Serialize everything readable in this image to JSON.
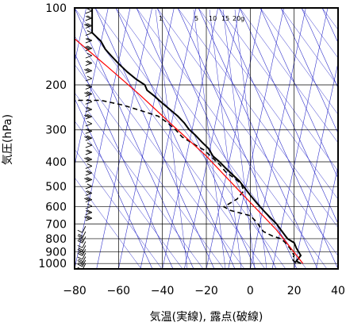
{
  "chart_data": {
    "type": "line",
    "xlabel": "気温(実線), 露点(破線)",
    "ylabel": "気圧(hPa)",
    "xlim": [
      -80,
      40
    ],
    "ylim": [
      1050,
      100
    ],
    "y_scale": "log",
    "x_ticks": [
      -80,
      -60,
      -40,
      -20,
      0,
      20,
      40
    ],
    "x_tick_labels": [
      "−80",
      "−60",
      "−40",
      "−20",
      "0",
      "20",
      "40"
    ],
    "y_ticks": [
      100,
      200,
      300,
      400,
      500,
      600,
      700,
      800,
      900,
      1000
    ],
    "y_tick_labels": [
      "100",
      "200",
      "300",
      "400",
      "500",
      "600",
      "700",
      "800",
      "900",
      "1000"
    ],
    "mixing_ratio_labels": [
      {
        "text": "1",
        "value": 1
      },
      {
        "text": "5",
        "value": 5
      },
      {
        "text": "10",
        "value": 10
      },
      {
        "text": "15",
        "value": 15
      },
      {
        "text": "20g",
        "value": 20
      }
    ],
    "colors": {
      "temperature": "#000000",
      "dewpoint": "#000000",
      "moist_adiabat": "#ff0000",
      "guide_lines": "#3333cc",
      "grid": "#000000",
      "wind_barbs": "#000000"
    },
    "series": [
      {
        "type": "temperature_profile",
        "style": "solid",
        "points": [
          [
            -72,
            100
          ],
          [
            -72,
            125
          ],
          [
            -68,
            135
          ],
          [
            -66,
            145
          ],
          [
            -63,
            155
          ],
          [
            -60,
            165
          ],
          [
            -56,
            178
          ],
          [
            -52,
            190
          ],
          [
            -48,
            200
          ],
          [
            -47,
            210
          ],
          [
            -44,
            220
          ],
          [
            -41,
            232
          ],
          [
            -37,
            248
          ],
          [
            -33,
            265
          ],
          [
            -30,
            282
          ],
          [
            -28,
            298
          ],
          [
            -25,
            315
          ],
          [
            -22,
            335
          ],
          [
            -19,
            355
          ],
          [
            -17,
            380
          ],
          [
            -14,
            400
          ],
          [
            -11,
            425
          ],
          [
            -8,
            450
          ],
          [
            -5,
            475
          ],
          [
            -3,
            500
          ],
          [
            0,
            540
          ],
          [
            3,
            580
          ],
          [
            6,
            620
          ],
          [
            9,
            660
          ],
          [
            12,
            700
          ],
          [
            14,
            740
          ],
          [
            16,
            780
          ],
          [
            17,
            800
          ],
          [
            20,
            830
          ],
          [
            21,
            870
          ],
          [
            22,
            900
          ],
          [
            23,
            930
          ],
          [
            21,
            980
          ],
          [
            23,
            1000
          ]
        ]
      },
      {
        "type": "dewpoint_profile",
        "style": "dashed",
        "points": [
          [
            -82,
            230
          ],
          [
            -68,
            230
          ],
          [
            -58,
            240
          ],
          [
            -48,
            255
          ],
          [
            -42,
            265
          ],
          [
            -38,
            280
          ],
          [
            -34,
            300
          ],
          [
            -31,
            320
          ],
          [
            -26,
            340
          ],
          [
            -21,
            360
          ],
          [
            -18,
            380
          ],
          [
            -14,
            410
          ],
          [
            -11,
            440
          ],
          [
            -7,
            465
          ],
          [
            -4,
            490
          ],
          [
            -3,
            520
          ],
          [
            -6,
            560
          ],
          [
            -12,
            600
          ],
          [
            -9,
            620
          ],
          [
            0,
            650
          ],
          [
            3,
            690
          ],
          [
            6,
            750
          ],
          [
            10,
            780
          ],
          [
            14,
            800
          ],
          [
            16,
            830
          ],
          [
            18,
            870
          ],
          [
            19,
            900
          ],
          [
            20,
            930
          ],
          [
            19,
            960
          ],
          [
            21,
            1000
          ]
        ]
      },
      {
        "type": "moist_adiabat",
        "style": "solid",
        "points": [
          [
            -80,
            132
          ],
          [
            -65,
            170
          ],
          [
            -50,
            220
          ],
          [
            -35,
            290
          ],
          [
            -20,
            380
          ],
          [
            -5,
            520
          ],
          [
            5,
            640
          ],
          [
            12,
            740
          ],
          [
            18,
            860
          ],
          [
            24,
            1000
          ]
        ]
      }
    ],
    "wind_barbs": {
      "x_value": -75,
      "pressures": [
        105,
        112,
        120,
        128,
        137,
        147,
        157,
        168,
        180,
        193,
        208,
        222,
        238,
        255,
        272,
        290,
        310,
        330,
        352,
        375,
        400,
        425,
        452,
        480,
        510,
        542,
        575,
        610,
        645,
        680,
        715,
        750,
        785,
        820,
        850,
        880,
        910,
        940,
        970,
        1000
      ]
    }
  }
}
